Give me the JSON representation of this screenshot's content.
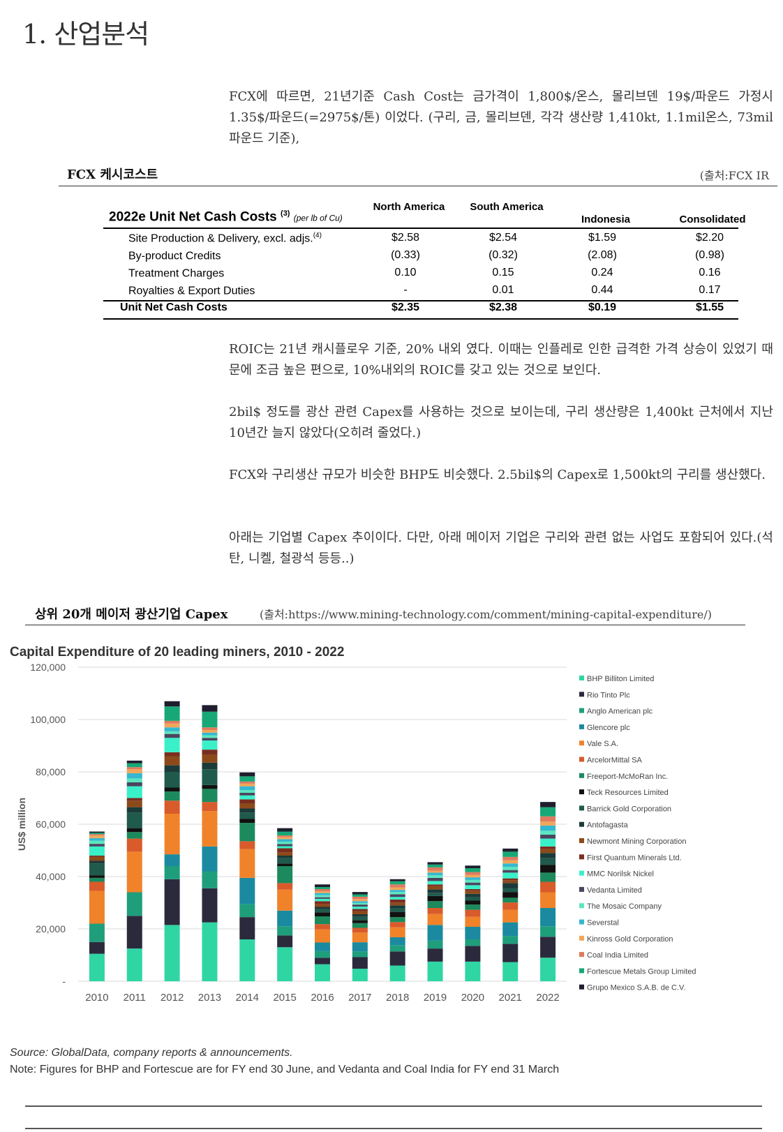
{
  "page_title": "1. 산업분석",
  "intro_paragraph": "FCX에 따르면, 21년기준 Cash Cost는 금가격이 1,800$/온스, 몰리브덴 19$/파운드 가정시 1.35$/파운드(=2975$/톤) 이었다. (구리, 금, 몰리브덴, 각각 생산량 1,410kt, 1.1mil온스, 73mil파운드 기준),",
  "fcx_section": {
    "label": "FCX 케시코스트",
    "source": "(출처:FCX IR"
  },
  "cost_table": {
    "title": "2022e Unit Net Cash Costs",
    "title_sup": "(3)",
    "title_note": "(per lb of Cu)",
    "columns": [
      "North America",
      "South America",
      "Indonesia",
      "Consolidated"
    ],
    "rows": [
      {
        "label": "Site Production & Delivery, excl. adjs.",
        "sup": "(4)",
        "values": [
          "$2.58",
          "$2.54",
          "$1.59",
          "$2.20"
        ]
      },
      {
        "label": "By-product Credits",
        "sup": "",
        "values": [
          "(0.33)",
          "(0.32)",
          "(2.08)",
          "(0.98)"
        ]
      },
      {
        "label": "Treatment Charges",
        "sup": "",
        "values": [
          "0.10",
          "0.15",
          "0.24",
          "0.16"
        ]
      },
      {
        "label": "Royalties & Export Duties",
        "sup": "",
        "values": [
          "-",
          "0.01",
          "0.44",
          "0.17"
        ]
      }
    ],
    "total": {
      "label": "Unit Net Cash Costs",
      "values": [
        "$2.35",
        "$2.38",
        "$0.19",
        "$1.55"
      ]
    }
  },
  "paragraphs": [
    "ROIC는 21년 캐시플로우 기준, 20% 내외 였다. 이때는 인플레로 인한 급격한 가격 상승이 있었기 때문에 조금 높은 편으로, 10%내외의 ROIC를 갖고 있는 것으로 보인다.",
    "2bil$ 정도를 광산 관련 Capex를 사용하는 것으로 보이는데, 구리 생산량은 1,400kt 근처에서 지난 10년간 늘지 않았다(오히려 줄었다.)",
    "FCX와 구리생산 규모가 비슷한 BHP도 비슷했다. 2.5bil$의 Capex로 1,500kt의 구리를 생산했다.",
    "아래는 기업별 Capex 추이이다. 다만, 아래 메이저 기업은 구리와 관련 없는 사업도 포함되어 있다.(석탄, 니켈, 철광석 등등..)"
  ],
  "capex_section": {
    "label": "상위 20개 메이저 광산기업 Capex",
    "source": "(출처:https://www.mining-technology.com/comment/mining-capital-expenditure/)"
  },
  "chart_data": {
    "type": "bar",
    "stacked": true,
    "title": "Capital Expenditure of 20 leading miners, 2010 - 2022",
    "ylabel": "US$ million",
    "xlabel": "",
    "ylim": [
      0,
      120000
    ],
    "yticks": [
      "-",
      "20,000",
      "40,000",
      "60,000",
      "80,000",
      "100,000",
      "120,000"
    ],
    "categories": [
      "2010",
      "2011",
      "2012",
      "2013",
      "2014",
      "2015",
      "2016",
      "2017",
      "2018",
      "2019",
      "2020",
      "2021",
      "2022"
    ],
    "series": [
      {
        "name": "BHP Billiton Limited",
        "color": "#2fd6a4",
        "values": [
          10500,
          12500,
          21500,
          22500,
          16000,
          13000,
          6500,
          4800,
          6000,
          7500,
          7500,
          7300,
          9000
        ]
      },
      {
        "name": "Rio Tinto Plc",
        "color": "#2b2a3d",
        "values": [
          4500,
          12500,
          17500,
          13000,
          8500,
          4500,
          2500,
          4400,
          5400,
          5000,
          6000,
          7000,
          8000
        ]
      },
      {
        "name": "Anglo American plc",
        "color": "#1f9e7c",
        "values": [
          7000,
          9000,
          5000,
          6500,
          5000,
          3500,
          2500,
          2200,
          2400,
          3000,
          2500,
          3000,
          4000
        ]
      },
      {
        "name": "Glencore plc",
        "color": "#1b8aa0",
        "values": [
          0,
          0,
          4500,
          9500,
          10000,
          6000,
          3300,
          3500,
          3000,
          6000,
          4800,
          5200,
          7000
        ]
      },
      {
        "name": "Vale S.A.",
        "color": "#f0832a",
        "values": [
          12500,
          15500,
          15500,
          13500,
          11000,
          8000,
          5000,
          3700,
          3800,
          4200,
          3800,
          4800,
          6000
        ]
      },
      {
        "name": "ArcelorMittal SA",
        "color": "#d95b2b",
        "values": [
          3500,
          5000,
          5000,
          3500,
          3000,
          2500,
          2000,
          1800,
          2000,
          2300,
          2700,
          2800,
          4000
        ]
      },
      {
        "name": "Freeport-McMoRan Inc.",
        "color": "#1c8a5d",
        "values": [
          1500,
          2500,
          3500,
          5000,
          7000,
          6500,
          3000,
          1800,
          1900,
          2600,
          2000,
          1800,
          3500
        ]
      },
      {
        "name": "Teck Resources Limited",
        "color": "#111111",
        "values": [
          1000,
          1500,
          1500,
          1500,
          1500,
          1000,
          1500,
          1100,
          2000,
          2000,
          1500,
          2200,
          3000
        ]
      },
      {
        "name": "Barrick Gold Corporation",
        "color": "#1f5a4c",
        "values": [
          4500,
          6000,
          6000,
          6000,
          2500,
          2000,
          1200,
          1400,
          1500,
          1200,
          1300,
          1500,
          2500
        ]
      },
      {
        "name": "Antofagasta",
        "color": "#1b3a3a",
        "values": [
          1000,
          2000,
          2500,
          2500,
          1500,
          1000,
          900,
          900,
          1000,
          1300,
          1300,
          1900,
          2000
        ]
      },
      {
        "name": "Newmont Mining Corporation",
        "color": "#8c4a1a",
        "values": [
          1500,
          2500,
          3500,
          3000,
          2000,
          1300,
          1000,
          1100,
          1100,
          1200,
          1200,
          1100,
          1500
        ]
      },
      {
        "name": "First Quantum Minerals Ltd.",
        "color": "#7a2e20",
        "values": [
          500,
          1000,
          1500,
          2000,
          1500,
          1500,
          1200,
          900,
          1100,
          700,
          600,
          700,
          1000
        ]
      },
      {
        "name": "MMC Norilsk Nickel",
        "color": "#3af0c9",
        "values": [
          3500,
          4500,
          5500,
          3500,
          1500,
          800,
          900,
          900,
          1000,
          1300,
          1500,
          2200,
          3000
        ]
      },
      {
        "name": "Vedanta Limited",
        "color": "#4a4660",
        "values": [
          1000,
          1500,
          1500,
          1000,
          1000,
          800,
          600,
          800,
          1000,
          1200,
          1000,
          1000,
          1500
        ]
      },
      {
        "name": "The Mosaic Company",
        "color": "#5ce6c0",
        "values": [
          1200,
          1500,
          1000,
          1000,
          1000,
          900,
          800,
          600,
          900,
          1000,
          1000,
          1200,
          1500
        ]
      },
      {
        "name": "Severstal",
        "color": "#35b8cf",
        "values": [
          1000,
          2000,
          1500,
          1000,
          1500,
          1000,
          800,
          700,
          800,
          1000,
          1000,
          1300,
          2000
        ]
      },
      {
        "name": "Kinross Gold Corporation",
        "color": "#f2a65a",
        "values": [
          1000,
          1500,
          1500,
          1000,
          1000,
          800,
          700,
          800,
          900,
          700,
          900,
          1200,
          1500
        ]
      },
      {
        "name": "Coal India Limited",
        "color": "#e07a5f",
        "values": [
          500,
          800,
          1000,
          1000,
          800,
          600,
          800,
          900,
          1200,
          1300,
          1100,
          1300,
          2000
        ]
      },
      {
        "name": "Fortescue Metals Group Limited",
        "color": "#18a877",
        "values": [
          500,
          1500,
          5500,
          6000,
          2000,
          1500,
          800,
          900,
          1200,
          1100,
          1500,
          2000,
          3500
        ]
      },
      {
        "name": "Grupo Mexico S.A.B. de C.V.",
        "color": "#1e1e2e",
        "values": [
          500,
          1000,
          2000,
          2500,
          1500,
          1300,
          1000,
          900,
          800,
          900,
          1000,
          1200,
          2000
        ]
      }
    ]
  },
  "chart_notes": {
    "source": "Source: GlobalData, company reports & announcements.",
    "note": "Note: Figures for BHP and Fortescue are for FY end 30 June, and Vedanta and Coal India for FY end 31 March"
  }
}
